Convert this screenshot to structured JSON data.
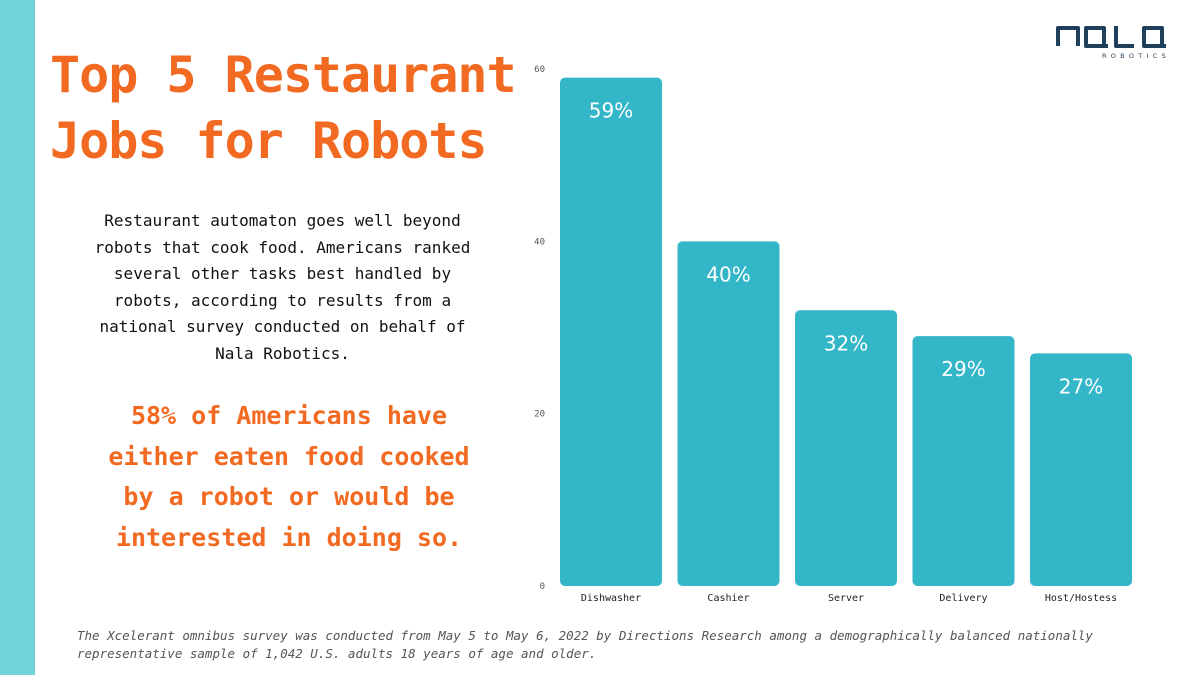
{
  "title_lines": [
    "Top 5 Restaurant",
    "Jobs for Robots"
  ],
  "intro_lines": [
    "Restaurant automaton goes well beyond",
    "robots that cook food. Americans ranked",
    "several other tasks best handled by",
    "robots, according to results from a",
    "national survey conducted on behalf of",
    "Nala Robotics."
  ],
  "stat_lines": [
    "58% of Americans have",
    "either eaten food cooked",
    "by a robot or would be",
    "interested in doing so."
  ],
  "logo": {
    "wordmark": "nala",
    "subtitle": "ROBOTICS",
    "color": "#1f3f5b"
  },
  "footnote_lines": [
    "The Xcelerant omnibus survey was conducted from May 5 to May 6, 2022 by Directions Research among a demographically balanced nationally",
    "representative sample of 1,042 U.S. adults 18 years of age and older."
  ],
  "colors": {
    "accent": "#f26a21",
    "bar": "#32b6c8",
    "stripe": "#72d3dd"
  },
  "chart_data": {
    "type": "bar",
    "categories": [
      "Dishwasher",
      "Cashier",
      "Server",
      "Delivery",
      "Host/Hostess"
    ],
    "values": [
      59,
      40,
      32,
      29,
      27
    ],
    "data_labels": [
      "59%",
      "40%",
      "32%",
      "29%",
      "27%"
    ],
    "ylim": [
      0,
      60
    ],
    "yticks": [
      0,
      20,
      40,
      60
    ],
    "grid": false,
    "legend": "none"
  }
}
